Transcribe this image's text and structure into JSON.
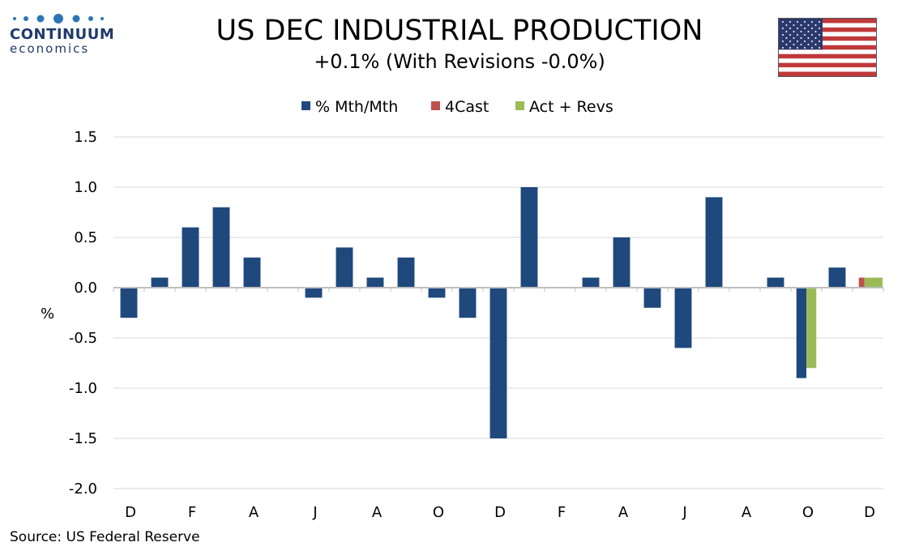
{
  "header": {
    "logo_name": "CONTINUUM",
    "logo_sub": "economics",
    "title": "US DEC INDUSTRIAL PRODUCTION",
    "subtitle": "+0.1% (With Revisions -0.0%)",
    "flag_icon": "us-flag-icon"
  },
  "footer": {
    "source": "Source: US Federal Reserve"
  },
  "colors": {
    "series_mth": "#1f497d",
    "series_4cast": "#c0504d",
    "series_revs": "#9bbb59",
    "grid": "#d9d9d9",
    "logo": "#1f3a6b"
  },
  "chart_data": {
    "type": "bar",
    "title": "US DEC INDUSTRIAL PRODUCTION",
    "subtitle": "+0.1% (With Revisions -0.0%)",
    "ylabel": "%",
    "xlabel": "",
    "ylim": [
      -2.0,
      1.5
    ],
    "yticks": [
      1.5,
      1.0,
      0.5,
      0.0,
      -0.5,
      -1.0,
      -1.5,
      -2.0
    ],
    "ytick_labels": [
      "1.5",
      "1.0",
      "0.5",
      "0.0",
      "-0.5",
      "-1.0",
      "-1.5",
      "-2.0"
    ],
    "grid": true,
    "legend_position": "top-center",
    "categories": [
      "D",
      "J",
      "F",
      "M",
      "A",
      "M",
      "J",
      "J",
      "A",
      "S",
      "O",
      "N",
      "D",
      "J",
      "F",
      "M",
      "A",
      "M",
      "J",
      "J",
      "A",
      "S",
      "O",
      "N",
      "D"
    ],
    "xtick_labels": [
      "D",
      "F",
      "A",
      "J",
      "A",
      "O",
      "D",
      "F",
      "A",
      "J",
      "A",
      "O",
      "D"
    ],
    "xtick_label_indices": [
      0,
      2,
      4,
      6,
      8,
      10,
      12,
      14,
      16,
      18,
      20,
      22,
      24
    ],
    "series": [
      {
        "name": "% Mth/Mth",
        "color": "#1f497d",
        "values": [
          -0.3,
          0.1,
          0.6,
          0.8,
          0.3,
          0.0,
          -0.1,
          0.4,
          0.1,
          0.3,
          -0.1,
          -0.3,
          -1.5,
          1.0,
          0.0,
          0.1,
          0.5,
          -0.2,
          -0.6,
          0.9,
          0.0,
          0.1,
          -0.9,
          0.2,
          null
        ]
      },
      {
        "name": "4Cast",
        "color": "#c0504d",
        "values": [
          null,
          null,
          null,
          null,
          null,
          null,
          null,
          null,
          null,
          null,
          null,
          null,
          null,
          null,
          null,
          null,
          null,
          null,
          null,
          null,
          null,
          null,
          null,
          null,
          0.1
        ]
      },
      {
        "name": "Act + Revs",
        "color": "#9bbb59",
        "values": [
          null,
          null,
          null,
          null,
          null,
          null,
          null,
          null,
          null,
          null,
          null,
          null,
          null,
          null,
          null,
          null,
          null,
          null,
          null,
          null,
          null,
          null,
          -0.8,
          null,
          0.1
        ]
      }
    ]
  }
}
